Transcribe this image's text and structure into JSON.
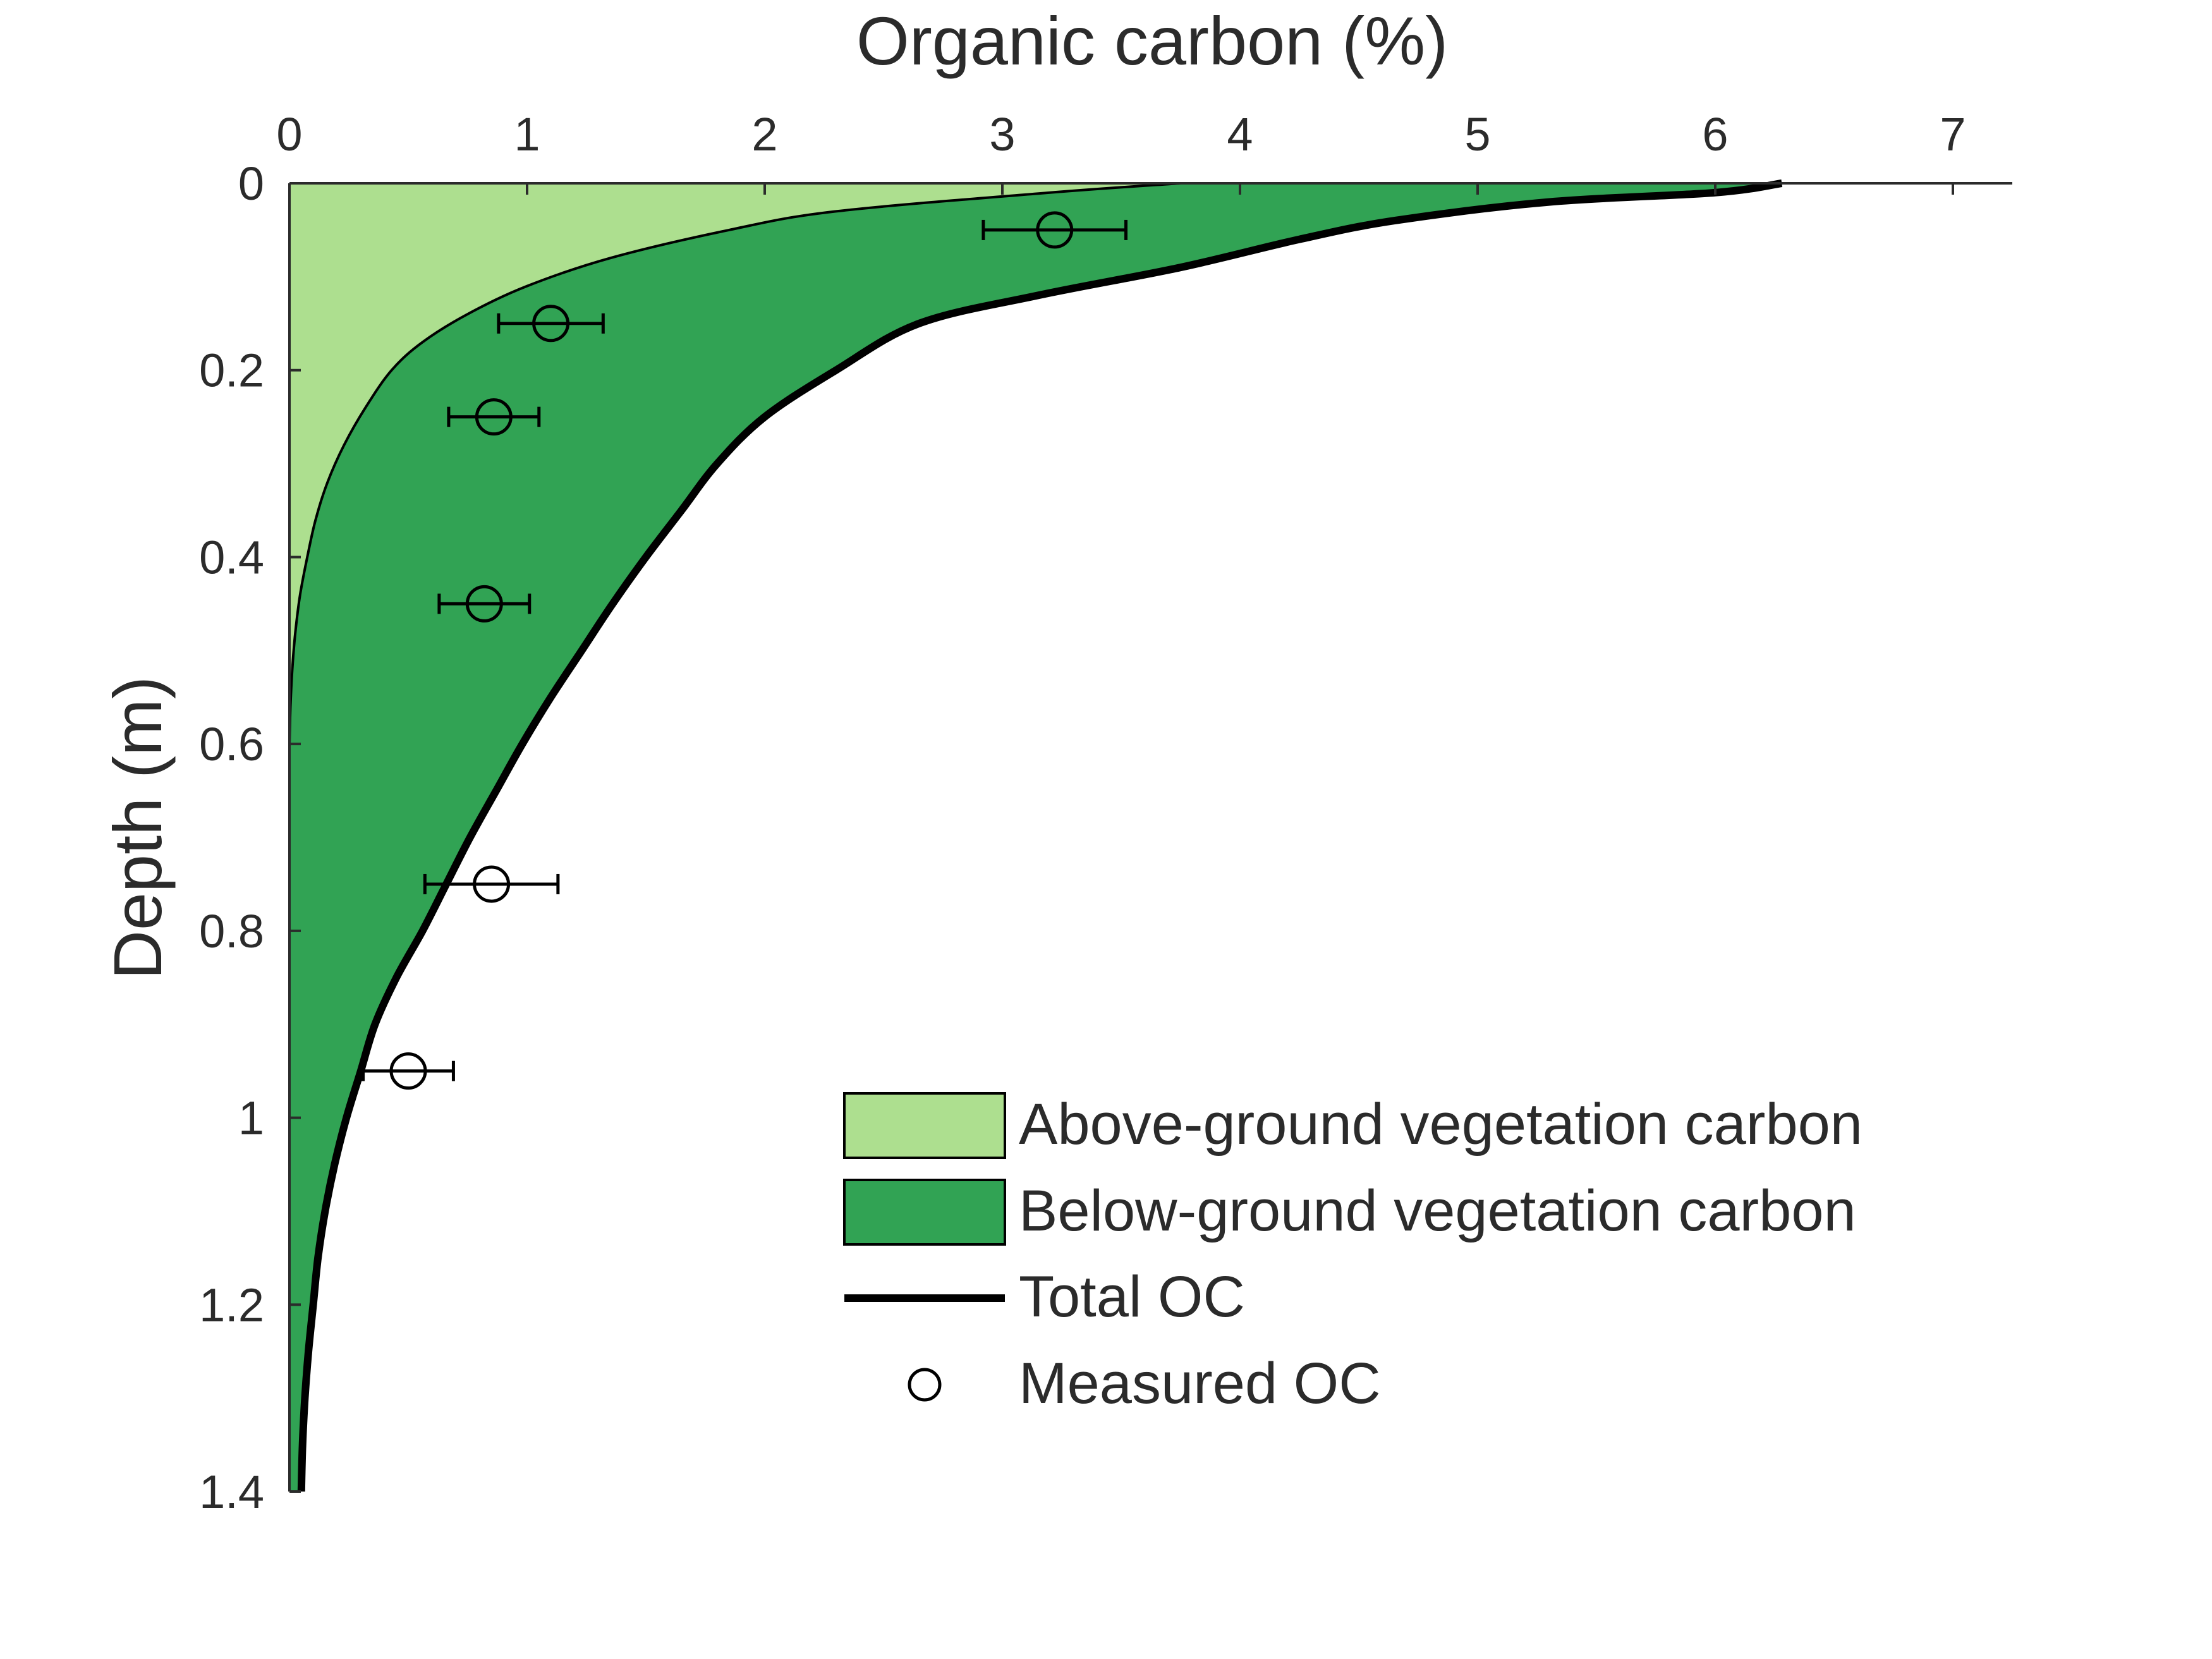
{
  "chart_data": {
    "type": "area",
    "orientation": "depth-profile",
    "title": "",
    "xlabel": "Organic carbon (%)",
    "ylabel": "Depth (m)",
    "xlim": [
      0,
      7.25
    ],
    "ylim": [
      0,
      1.4
    ],
    "x_axis_position": "top",
    "y_inverted": true,
    "x_ticks": [
      0,
      1,
      2,
      3,
      4,
      5,
      6,
      7
    ],
    "y_ticks": [
      0,
      0.2,
      0.4,
      0.6,
      0.8,
      1,
      1.2,
      1.4
    ],
    "y_tick_labels": [
      "0",
      "0.2",
      "0.4",
      "0.6",
      "0.8",
      "1",
      "1.2",
      "1.4"
    ],
    "grid": false,
    "legend_position": "bottom-right",
    "colors": {
      "above": "#addf8f",
      "below": "#31a354",
      "total": "#000000",
      "marker": "#000000"
    },
    "series": [
      {
        "name": "Above-ground vegetation carbon",
        "kind": "area",
        "depth": [
          0,
          0.01,
          0.03,
          0.05,
          0.08,
          0.11,
          0.14,
          0.17,
          0.2,
          0.24,
          0.28,
          0.32,
          0.36,
          0.4,
          0.44,
          0.48,
          0.52,
          0.56,
          0.6
        ],
        "carbon": [
          3.75,
          3.2,
          2.3,
          1.85,
          1.35,
          1.0,
          0.75,
          0.56,
          0.43,
          0.32,
          0.23,
          0.16,
          0.11,
          0.075,
          0.045,
          0.025,
          0.012,
          0.004,
          0.0
        ]
      },
      {
        "name": "Below-ground vegetation carbon",
        "kind": "area",
        "depth": [
          0,
          0.01,
          0.02,
          0.04,
          0.06,
          0.09,
          0.12,
          0.15,
          0.2,
          0.25,
          0.3,
          0.35,
          0.4,
          0.45,
          0.5,
          0.55,
          0.6,
          0.65,
          0.7,
          0.75,
          0.8,
          0.85,
          0.9,
          0.95,
          1.0,
          1.05,
          1.1,
          1.15,
          1.2,
          1.25,
          1.3,
          1.35,
          1.4
        ],
        "carbon": [
          6.28,
          6.0,
          5.3,
          4.65,
          4.25,
          3.75,
          3.15,
          2.65,
          2.3,
          2.0,
          1.8,
          1.65,
          1.5,
          1.36,
          1.23,
          1.1,
          0.98,
          0.87,
          0.76,
          0.66,
          0.56,
          0.45,
          0.36,
          0.3,
          0.24,
          0.19,
          0.15,
          0.12,
          0.1,
          0.08,
          0.065,
          0.055,
          0.05
        ]
      },
      {
        "name": "Total OC",
        "kind": "line",
        "depth": [
          0,
          0.01,
          0.02,
          0.04,
          0.06,
          0.09,
          0.12,
          0.15,
          0.2,
          0.25,
          0.3,
          0.35,
          0.4,
          0.45,
          0.5,
          0.55,
          0.6,
          0.65,
          0.7,
          0.75,
          0.8,
          0.85,
          0.9,
          0.95,
          1.0,
          1.05,
          1.1,
          1.15,
          1.2,
          1.25,
          1.3,
          1.35,
          1.4
        ],
        "carbon": [
          6.28,
          6.0,
          5.3,
          4.65,
          4.25,
          3.75,
          3.15,
          2.65,
          2.3,
          2.0,
          1.8,
          1.65,
          1.5,
          1.36,
          1.23,
          1.1,
          0.98,
          0.87,
          0.76,
          0.66,
          0.56,
          0.45,
          0.36,
          0.3,
          0.24,
          0.19,
          0.15,
          0.12,
          0.1,
          0.08,
          0.065,
          0.055,
          0.05
        ]
      },
      {
        "name": "Measured OC",
        "kind": "scatter",
        "depth": [
          0.05,
          0.15,
          0.25,
          0.45,
          0.75,
          0.95
        ],
        "carbon": [
          3.22,
          1.1,
          0.86,
          0.82,
          0.85,
          0.5
        ],
        "error": [
          0.3,
          0.22,
          0.19,
          0.19,
          0.28,
          0.19
        ]
      }
    ]
  }
}
